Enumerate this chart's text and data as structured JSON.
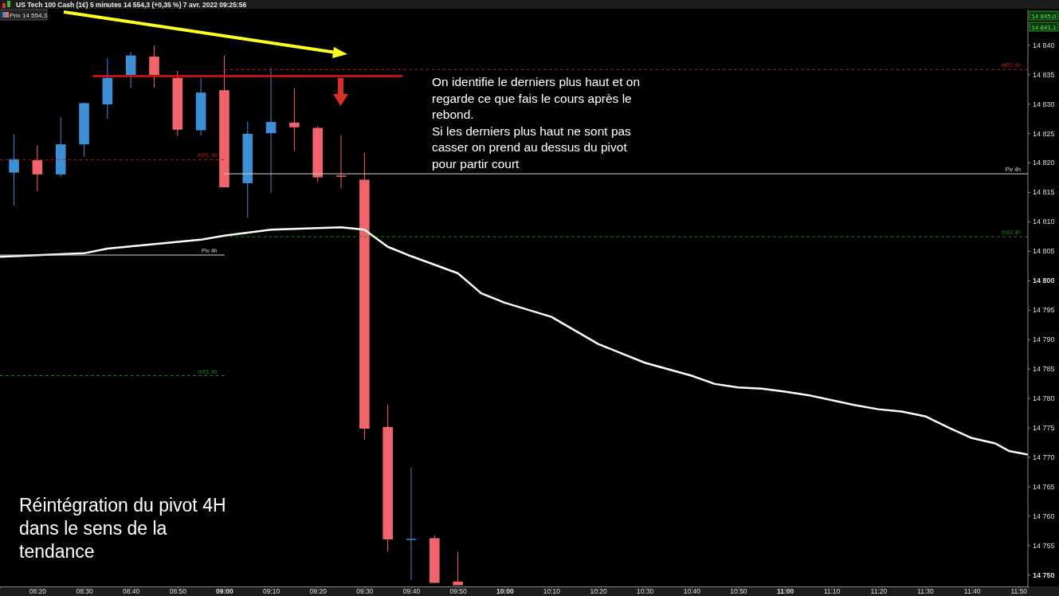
{
  "chart_data": {
    "type": "candlestick",
    "title": "US Tech 100 Cash (1€) 5 minutes 14 554,3 (+0,35 %) 7 avr. 2022 09:25:56",
    "x": [
      "2022-04-07T08:15",
      "2022-04-07T08:20",
      "2022-04-07T08:25",
      "2022-04-07T08:30",
      "2022-04-07T08:35",
      "2022-04-07T08:40",
      "2022-04-07T08:45",
      "2022-04-07T08:50",
      "2022-04-07T08:55",
      "2022-04-07T09:00",
      "2022-04-07T09:05",
      "2022-04-07T09:10",
      "2022-04-07T09:15",
      "2022-04-07T09:20",
      "2022-04-07T09:25",
      "2022-04-07T09:30",
      "2022-04-07T09:35",
      "2022-04-07T09:40",
      "2022-04-07T09:45",
      "2022-04-07T09:50"
    ],
    "ohlc": [
      [
        14818.3,
        14824.8,
        14812.7,
        14820.6
      ],
      [
        14820.4,
        14823.0,
        14815.1,
        14818.0
      ],
      [
        14818.0,
        14827.7,
        14817.6,
        14823.1
      ],
      [
        14823.1,
        14830.2,
        14821.0,
        14830.1
      ],
      [
        14829.9,
        14837.7,
        14827.4,
        14834.4
      ],
      [
        14834.9,
        14838.8,
        14832.7,
        14838.2
      ],
      [
        14838.0,
        14839.9,
        14832.7,
        14834.9
      ],
      [
        14834.4,
        14835.6,
        14824.5,
        14825.6
      ],
      [
        14825.5,
        14834.4,
        14824.6,
        14831.9
      ],
      [
        14832.3,
        14838.2,
        14815.8,
        14815.8
      ],
      [
        14816.5,
        14827.0,
        14810.6,
        14824.9
      ],
      [
        14825.0,
        14836.1,
        14814.8,
        14826.9
      ],
      [
        14826.8,
        14832.6,
        14822.0,
        14826.0
      ],
      [
        14825.9,
        14826.2,
        14816.7,
        14817.5
      ],
      [
        14817.8,
        14824.7,
        14815.6,
        14817.6
      ],
      [
        14817.1,
        14821.7,
        14772.9,
        14774.8
      ],
      [
        14775.1,
        14778.9,
        14753.9,
        14756.0
      ],
      [
        14756.0,
        14768.2,
        14749.1,
        14756.1
      ],
      [
        14756.2,
        14756.7,
        14748.6,
        14748.6
      ],
      [
        14748.8,
        14753.9,
        14748.2,
        14748.2
      ]
    ],
    "colors": [
      "#3d8fd6",
      "#f2646c",
      "#3d8fd6",
      "#3d8fd6",
      "#3d8fd6",
      "#3d8fd6",
      "#f2646c",
      "#f2646c",
      "#3d8fd6",
      "#f2646c",
      "#3d8fd6",
      "#3d8fd6",
      "#f2646c",
      "#f2646c",
      "#f2646c",
      "#f2646c",
      "#f2646c",
      "#3d8fd6",
      "#f2646c",
      "#f2646c"
    ],
    "series": [
      {
        "type": "line",
        "color": "#ffffff",
        "x": [
          "2022-04-07T08:12",
          "2022-04-07T08:30",
          "2022-04-07T08:35",
          "2022-04-07T08:55",
          "2022-04-07T09:00",
          "2022-04-07T09:10",
          "2022-04-07T09:25",
          "2022-04-07T09:30",
          "2022-04-07T09:35",
          "2022-04-07T09:40",
          "2022-04-07T09:50",
          "2022-04-07T09:55",
          "2022-04-07T10:00",
          "2022-04-07T10:10",
          "2022-04-07T10:20",
          "2022-04-07T10:30",
          "2022-04-07T10:40",
          "2022-04-07T10:45",
          "2022-04-07T10:50",
          "2022-04-07T10:55",
          "2022-04-07T11:00",
          "2022-04-07T11:05",
          "2022-04-07T11:15",
          "2022-04-07T11:20",
          "2022-04-07T11:25",
          "2022-04-07T11:30",
          "2022-04-07T11:35",
          "2022-04-07T11:40",
          "2022-04-07T11:45",
          "2022-04-07T11:48",
          "2022-04-07T11:52"
        ],
        "values": [
          14804.0,
          14804.6,
          14805.4,
          14806.9,
          14807.6,
          14808.6,
          14809.0,
          14808.6,
          14805.7,
          14804.1,
          14801.2,
          14797.8,
          14796.2,
          14793.8,
          14789.2,
          14786.0,
          14783.8,
          14782.4,
          14781.8,
          14781.6,
          14781.1,
          14780.5,
          14778.8,
          14778.1,
          14777.7,
          14776.9,
          14775.0,
          14773.2,
          14772.3,
          14771.0,
          14770.4
        ]
      },
      {
        "type": "line",
        "name": "mR1 4h",
        "color": "#c01818",
        "line_style": "dashed",
        "x": [
          "2022-04-07T08:12",
          "2022-04-07T09:00"
        ],
        "values": [
          14820.5,
          14820.5
        ]
      },
      {
        "type": "line",
        "name": "Piv 4h",
        "color": "#d0d0d0",
        "line_style": "solid",
        "x": [
          "2022-04-07T08:12",
          "2022-04-07T09:00"
        ],
        "values": [
          14804.3,
          14804.3
        ]
      },
      {
        "type": "line",
        "name": "mS1 4h",
        "color": "#1f8a1f",
        "line_style": "dashed",
        "x": [
          "2022-04-07T08:12",
          "2022-04-07T09:00"
        ],
        "values": [
          14783.8,
          14783.8
        ]
      },
      {
        "type": "line",
        "name": "mR1 4h",
        "color": "#c01818",
        "line_style": "dashed",
        "x": [
          "2022-04-07T09:00",
          "2022-04-07T11:52"
        ],
        "values": [
          14835.8,
          14835.8
        ]
      },
      {
        "type": "line",
        "name": "Piv 4h",
        "color": "#d0d0d0",
        "line_style": "solid",
        "x": [
          "2022-04-07T09:00",
          "2022-04-07T11:52"
        ],
        "values": [
          14818.1,
          14818.1
        ]
      },
      {
        "type": "line",
        "name": "mS1 4h",
        "color": "#1f8a1f",
        "line_style": "dashed",
        "x": [
          "2022-04-07T09:00",
          "2022-04-07T11:52"
        ],
        "values": [
          14807.4,
          14807.4
        ]
      },
      {
        "type": "line",
        "color": "#e01010",
        "line_style": "solid",
        "x": [
          "2022-04-07T08:32",
          "2022-04-07T09:38"
        ],
        "values": [
          14834.7,
          14834.7
        ]
      }
    ],
    "xlim": [
      "2022-04-07T08:12",
      "2022-04-07T11:52"
    ],
    "xticks": [
      {
        "value": "2022-04-07T08:20",
        "label": "08:20"
      },
      {
        "value": "2022-04-07T08:30",
        "label": "08:30"
      },
      {
        "value": "2022-04-07T08:40",
        "label": "08:40"
      },
      {
        "value": "2022-04-07T08:50",
        "label": "08:50"
      },
      {
        "value": "2022-04-07T09:00",
        "label": "09:00"
      },
      {
        "value": "2022-04-07T09:10",
        "label": "09:10"
      },
      {
        "value": "2022-04-07T09:20",
        "label": "09:20"
      },
      {
        "value": "2022-04-07T09:30",
        "label": "09:30"
      },
      {
        "value": "2022-04-07T09:40",
        "label": "09:40"
      },
      {
        "value": "2022-04-07T09:50",
        "label": "09:50"
      },
      {
        "value": "2022-04-07T10:00",
        "label": "10:00"
      },
      {
        "value": "2022-04-07T10:10",
        "label": "10:10"
      },
      {
        "value": "2022-04-07T10:20",
        "label": "10:20"
      },
      {
        "value": "2022-04-07T10:30",
        "label": "10:30"
      },
      {
        "value": "2022-04-07T10:40",
        "label": "10:40"
      },
      {
        "value": "2022-04-07T10:50",
        "label": "10:50"
      },
      {
        "value": "2022-04-07T11:00",
        "label": "11:00"
      },
      {
        "value": "2022-04-07T11:10",
        "label": "11:10"
      },
      {
        "value": "2022-04-07T11:20",
        "label": "11:20"
      },
      {
        "value": "2022-04-07T11:30",
        "label": "11:30"
      },
      {
        "value": "2022-04-07T11:40",
        "label": "11:40"
      },
      {
        "value": "2022-04-07T11:50",
        "label": "11:50"
      }
    ],
    "ylim": [
      14748,
      14846
    ],
    "yticks": [
      {
        "value": 14750,
        "label": "14 750"
      },
      {
        "value": 14755,
        "label": "14 755"
      },
      {
        "value": 14760,
        "label": "14 760"
      },
      {
        "value": 14765,
        "label": "14 765"
      },
      {
        "value": 14770,
        "label": "14 770"
      },
      {
        "value": 14775,
        "label": "14 775"
      },
      {
        "value": 14780,
        "label": "14 780"
      },
      {
        "value": 14785,
        "label": "14 785"
      },
      {
        "value": 14790,
        "label": "14 790"
      },
      {
        "value": 14795,
        "label": "14 795"
      },
      {
        "value": 14800,
        "label": "14 800"
      },
      {
        "value": 14805,
        "label": "14 805"
      },
      {
        "value": 14810,
        "label": "14 810"
      },
      {
        "value": 14815,
        "label": "14 815"
      },
      {
        "value": 14820,
        "label": "14 820"
      },
      {
        "value": 14825,
        "label": "14 825"
      },
      {
        "value": 14830,
        "label": "14 830"
      },
      {
        "value": 14835,
        "label": "14 835"
      },
      {
        "value": 14840,
        "label": "14 840"
      }
    ],
    "annotations": [
      "Prix 14 554,3",
      "14 845,0",
      "14 841,1",
      "On identifie le derniers plus haut et on\nregarde ce que fais le cours après le\nrebond.\nSi les derniers plus haut ne sont pas\ncasser on prend au dessus du pivot\npour partir court",
      "Réintégration du pivot 4H\ndans le sens de la\ntendance"
    ]
  }
}
